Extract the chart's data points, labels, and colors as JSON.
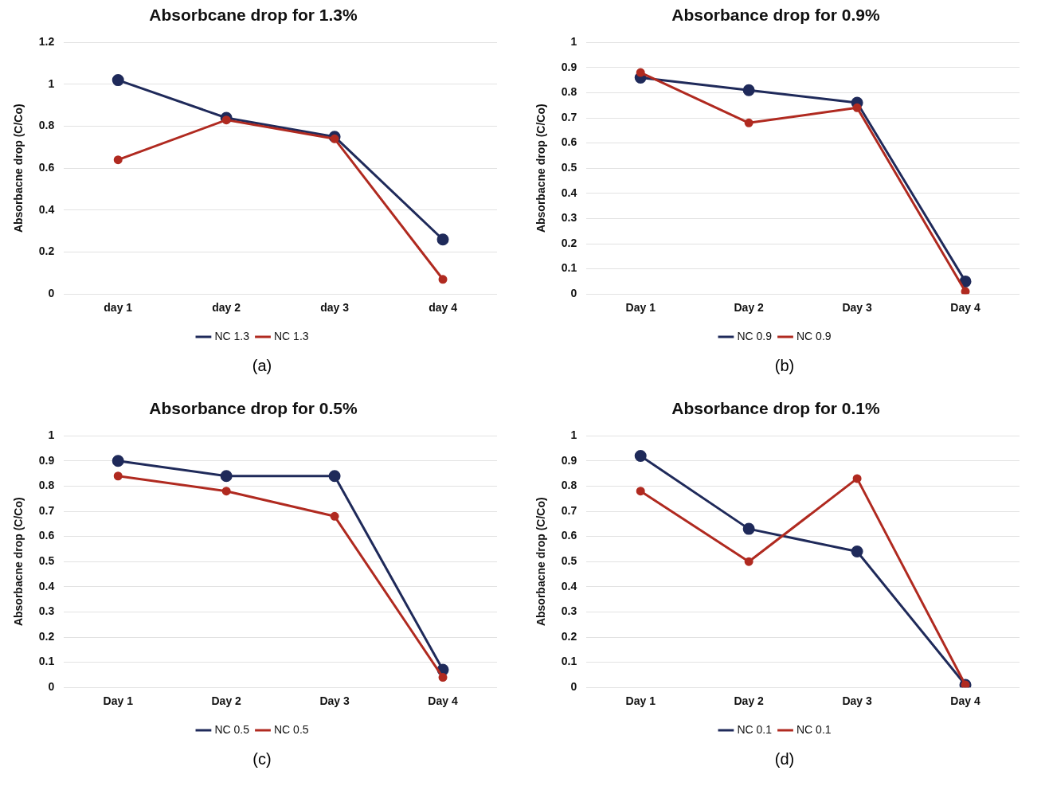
{
  "chart_data": [
    {
      "type": "line",
      "title": "Absorbcane drop for 1.3%",
      "ylabel": "Absorbacne drop (C/Co)",
      "categories": [
        "day 1",
        "day 2",
        "day 3",
        "day 4"
      ],
      "ylim": [
        0,
        1.2
      ],
      "yticks": [
        0,
        0.2,
        0.4,
        0.6,
        0.8,
        1,
        1.2
      ],
      "grid": "y",
      "legend": "bottom",
      "marker": "circle",
      "line_style": "solid",
      "series": [
        {
          "name": "NC 1.3",
          "color": "#1f2a5a",
          "values": [
            1.02,
            0.84,
            0.75,
            0.26
          ]
        },
        {
          "name": "NC 1.3",
          "color": "#b02a20",
          "values": [
            0.64,
            0.83,
            0.74,
            0.07
          ]
        }
      ],
      "annotations": [
        "(a)"
      ]
    },
    {
      "type": "line",
      "title": "Absorbance drop for 0.9%",
      "ylabel": "Absorbacne drop (C/Co)",
      "categories": [
        "Day 1",
        "Day 2",
        "Day 3",
        "Day 4"
      ],
      "ylim": [
        0,
        1
      ],
      "yticks": [
        0,
        0.1,
        0.2,
        0.3,
        0.4,
        0.5,
        0.6,
        0.7,
        0.8,
        0.9,
        1
      ],
      "grid": "y",
      "legend": "bottom",
      "marker": "circle",
      "line_style": "solid",
      "series": [
        {
          "name": "NC 0.9",
          "color": "#1f2a5a",
          "values": [
            0.86,
            0.81,
            0.76,
            0.05
          ]
        },
        {
          "name": "NC 0.9",
          "color": "#b02a20",
          "values": [
            0.88,
            0.68,
            0.74,
            0.01
          ]
        }
      ],
      "annotations": [
        "(b)"
      ]
    },
    {
      "type": "line",
      "title": "Absorbance drop for 0.5%",
      "ylabel": "Absorbacne drop (C/Co)",
      "categories": [
        "Day 1",
        "Day 2",
        "Day 3",
        "Day 4"
      ],
      "ylim": [
        0,
        1
      ],
      "yticks": [
        0,
        0.1,
        0.2,
        0.3,
        0.4,
        0.5,
        0.6,
        0.7,
        0.8,
        0.9,
        1
      ],
      "grid": "y",
      "legend": "bottom",
      "marker": "circle",
      "line_style": "solid",
      "series": [
        {
          "name": "NC 0.5",
          "color": "#1f2a5a",
          "values": [
            0.9,
            0.84,
            0.84,
            0.07
          ]
        },
        {
          "name": "NC 0.5",
          "color": "#b02a20",
          "values": [
            0.84,
            0.78,
            0.68,
            0.04
          ]
        }
      ],
      "annotations": [
        "(c)"
      ]
    },
    {
      "type": "line",
      "title": "Absorbance drop for 0.1%",
      "ylabel": "Absorbacne drop (C/Co)",
      "categories": [
        "Day 1",
        "Day 2",
        "Day 3",
        "Day 4"
      ],
      "ylim": [
        0,
        1
      ],
      "yticks": [
        0,
        0.1,
        0.2,
        0.3,
        0.4,
        0.5,
        0.6,
        0.7,
        0.8,
        0.9,
        1
      ],
      "grid": "y",
      "legend": "bottom",
      "marker": "circle",
      "line_style": "solid",
      "series": [
        {
          "name": "NC 0.1",
          "color": "#1f2a5a",
          "values": [
            0.92,
            0.63,
            0.54,
            0.01
          ]
        },
        {
          "name": "NC 0.1",
          "color": "#b02a20",
          "values": [
            0.78,
            0.5,
            0.83,
            0.01
          ]
        }
      ],
      "annotations": [
        "(d)"
      ]
    }
  ]
}
